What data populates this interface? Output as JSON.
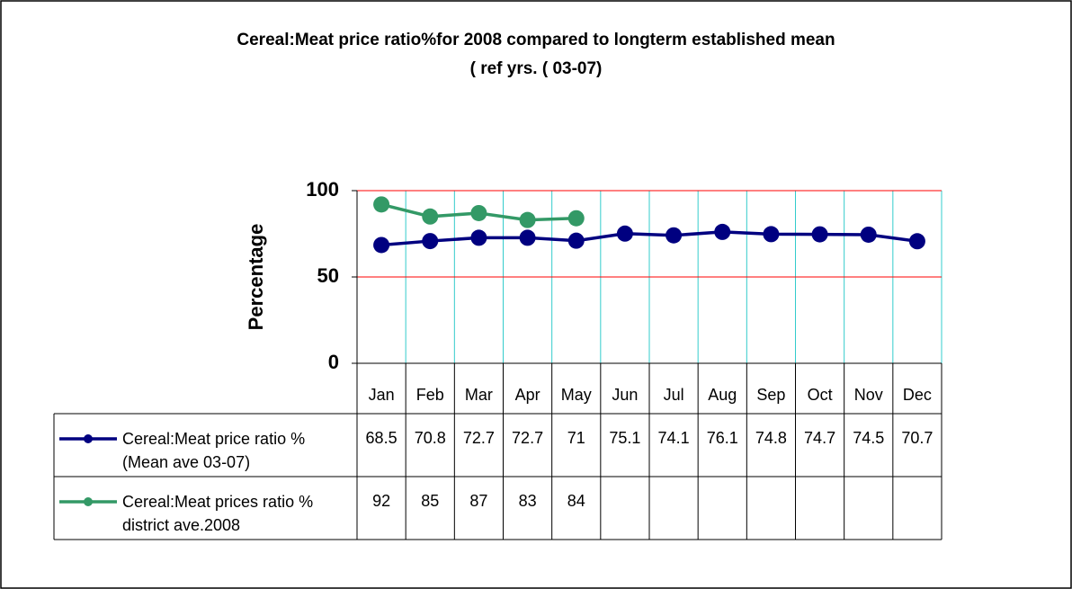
{
  "chart_data": {
    "type": "line",
    "title": "Cereal:Meat price ratio%for 2008 compared to longterm established mean",
    "subtitle": "( ref yrs. ( 03-07)",
    "y_label": "Percentage",
    "categories": [
      "Jan",
      "Feb",
      "Mar",
      "Apr",
      "May",
      "Jun",
      "Jul",
      "Aug",
      "Sep",
      "Oct",
      "Nov",
      "Dec"
    ],
    "series": [
      {
        "name": "Cereal:Meat price ratio % (Mean ave 03-07)",
        "color": "#000080",
        "values": [
          68.5,
          70.8,
          72.7,
          72.7,
          71,
          75.1,
          74.1,
          76.1,
          74.8,
          74.7,
          74.5,
          70.7
        ]
      },
      {
        "name": "Cereal:Meat prices ratio % district ave.2008",
        "color": "#339966",
        "values": [
          92,
          85,
          87,
          83,
          84,
          null,
          null,
          null,
          null,
          null,
          null,
          null
        ]
      }
    ],
    "ylim": [
      0,
      100
    ],
    "yticks": [
      0,
      50,
      100
    ],
    "grid": true,
    "grid_color": "#ff0000"
  }
}
